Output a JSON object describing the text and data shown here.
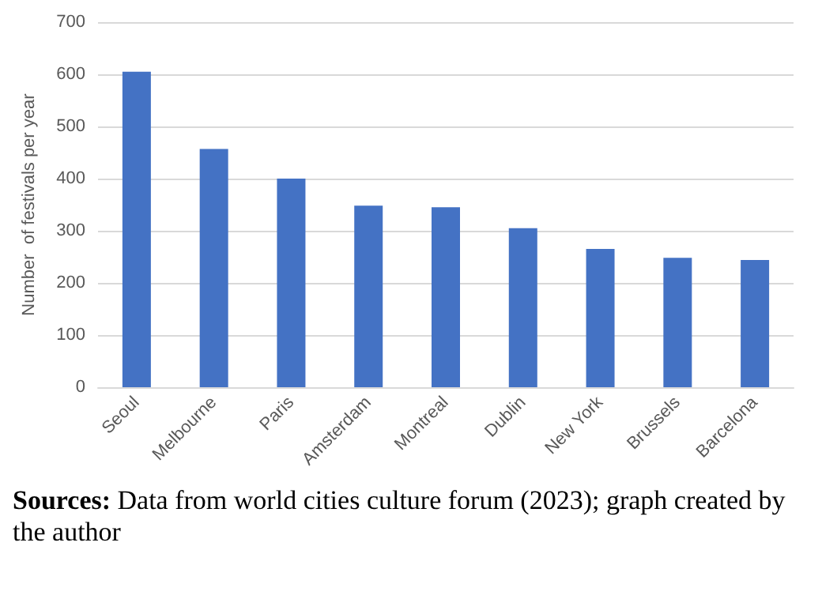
{
  "chart_data": {
    "type": "bar",
    "ylabel": "Number  of festivals per year",
    "categories": [
      "Seoul",
      "Melbourne",
      "Paris",
      "Amsterdam",
      "Montreal",
      "Dublin",
      "New York",
      "Brussels",
      "Barcelona"
    ],
    "values": [
      605,
      457,
      400,
      348,
      345,
      305,
      265,
      248,
      244
    ],
    "color": "#4472c4",
    "ylim": [
      0,
      700
    ],
    "yticks": [
      0,
      100,
      200,
      300,
      400,
      500,
      600,
      700
    ],
    "grid": "y",
    "annotations": [
      "Sources: Data from world cities culture forum (2023); graph created by the author"
    ]
  }
}
